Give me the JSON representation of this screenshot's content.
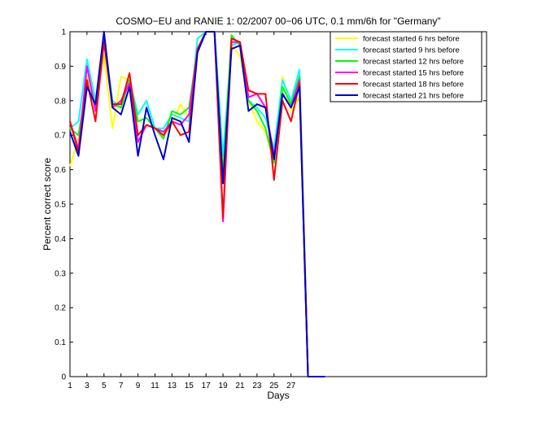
{
  "chart_data": {
    "type": "line",
    "title": "COSMO−EU and RANIE 1: 02/2007 00−06 UTC, 0.1 mm/6h for \"Germany\"",
    "xlabel": "Days",
    "ylabel": "Percent correct score",
    "xlim": [
      1,
      50
    ],
    "ylim": [
      0,
      1
    ],
    "xticks": [
      1,
      3,
      5,
      7,
      9,
      11,
      13,
      15,
      17,
      19,
      21,
      23,
      25,
      27
    ],
    "yticks": [
      0,
      0.1,
      0.2,
      0.3,
      0.4,
      0.5,
      0.6,
      0.7,
      0.8,
      0.9,
      1
    ],
    "ytick_labels": [
      "0",
      "0.1",
      "0.2",
      "0.3",
      "0.4",
      "0.5",
      "0.6",
      "0.7",
      "0.8",
      "0.9",
      "1"
    ],
    "grid": false,
    "legend_position": "top-right",
    "x": [
      1,
      2,
      3,
      4,
      5,
      6,
      7,
      8,
      9,
      10,
      11,
      12,
      13,
      14,
      15,
      16,
      17,
      18,
      19,
      20,
      21,
      22,
      23,
      24,
      25,
      26,
      27,
      28,
      29,
      30,
      31
    ],
    "series": [
      {
        "name": "forecast started 6 hrs before",
        "color": "#ffff00",
        "values": [
          0.61,
          0.69,
          0.87,
          0.8,
          0.93,
          0.72,
          0.87,
          0.86,
          0.7,
          0.73,
          0.72,
          0.7,
          0.73,
          0.79,
          0.75,
          0.98,
          1.0,
          1.0,
          0.6,
          0.96,
          0.93,
          0.8,
          0.74,
          0.71,
          0.62,
          0.87,
          0.77,
          0.81,
          0,
          0,
          0
        ]
      },
      {
        "name": "forecast started 9 hrs before",
        "color": "#00ffff",
        "values": [
          0.72,
          0.74,
          0.92,
          0.8,
          0.98,
          0.8,
          0.78,
          0.86,
          0.76,
          0.8,
          0.72,
          0.72,
          0.76,
          0.75,
          0.74,
          0.98,
          1.0,
          1.0,
          0.64,
          0.96,
          0.97,
          0.8,
          0.78,
          0.75,
          0.66,
          0.86,
          0.8,
          0.89,
          0,
          0,
          0
        ]
      },
      {
        "name": "forecast started 12 hrs before",
        "color": "#00ff00",
        "values": [
          0.72,
          0.7,
          0.85,
          0.78,
          0.99,
          0.79,
          0.78,
          0.86,
          0.74,
          0.75,
          0.72,
          0.69,
          0.77,
          0.76,
          0.78,
          0.95,
          1.0,
          1.0,
          0.58,
          0.99,
          0.96,
          0.8,
          0.77,
          0.72,
          0.62,
          0.84,
          0.79,
          0.87,
          0,
          0,
          0
        ]
      },
      {
        "name": "forecast started 15 hrs before",
        "color": "#ff00ff",
        "values": [
          0.74,
          0.66,
          0.9,
          0.77,
          0.97,
          0.78,
          0.8,
          0.85,
          0.68,
          0.73,
          0.72,
          0.71,
          0.74,
          0.73,
          0.76,
          0.95,
          1.0,
          1.0,
          0.45,
          0.97,
          0.97,
          0.81,
          0.82,
          0.78,
          0.64,
          0.82,
          0.78,
          0.86,
          0,
          0,
          0
        ]
      },
      {
        "name": "forecast started 18 hrs before",
        "color": "#ff0000",
        "values": [
          0.74,
          0.65,
          0.86,
          0.74,
          0.97,
          0.79,
          0.79,
          0.88,
          0.7,
          0.73,
          0.72,
          0.7,
          0.74,
          0.7,
          0.71,
          0.95,
          1.0,
          1.0,
          0.46,
          0.98,
          0.97,
          0.83,
          0.82,
          0.82,
          0.57,
          0.8,
          0.74,
          0.85,
          0,
          0,
          0
        ]
      },
      {
        "name": "forecast started 21 hrs before",
        "color": "#0000cc",
        "values": [
          0.71,
          0.64,
          0.84,
          0.79,
          1.0,
          0.78,
          0.76,
          0.84,
          0.64,
          0.78,
          0.7,
          0.63,
          0.75,
          0.74,
          0.68,
          0.94,
          1.0,
          1.0,
          0.56,
          0.95,
          0.96,
          0.77,
          0.79,
          0.78,
          0.63,
          0.82,
          0.78,
          0.84,
          0,
          0,
          0
        ]
      }
    ]
  }
}
